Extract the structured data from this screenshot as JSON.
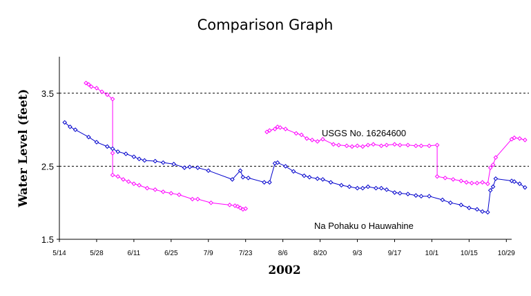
{
  "chart_data": {
    "type": "line",
    "title": "Comparison Graph",
    "xlabel": "2002",
    "ylabel": "Water Level (feet)",
    "ylim": [
      1.5,
      4.0
    ],
    "yticks": [
      1.5,
      2.5,
      3.5
    ],
    "ytick_labels": [
      "1.5",
      "2.5",
      "3.5"
    ],
    "dashed_gridlines_at": [
      2.5,
      3.5
    ],
    "xlim": [
      "2002-05-14",
      "2002-10-31"
    ],
    "xticks": [
      "2002-05-14",
      "2002-05-28",
      "2002-06-11",
      "2002-06-25",
      "2002-07-09",
      "2002-07-23",
      "2002-08-06",
      "2002-08-20",
      "2002-09-03",
      "2002-09-17",
      "2002-10-01",
      "2002-10-15",
      "2002-10-29"
    ],
    "xtick_labels": [
      "5/14",
      "5/28",
      "6/11",
      "6/25",
      "7/9",
      "7/23",
      "8/6",
      "8/20",
      "9/3",
      "9/17",
      "10/1",
      "10/15",
      "10/29"
    ],
    "series": [
      {
        "name": "USGS No. 16264600",
        "color": "#ff00ff",
        "marker": "diamond-open",
        "segments": [
          [
            [
              "2002-05-24",
              3.64
            ],
            [
              "2002-05-25",
              3.62
            ],
            [
              "2002-05-26",
              3.59
            ],
            [
              "2002-05-28",
              3.57
            ],
            [
              "2002-05-30",
              3.52
            ],
            [
              "2002-06-01",
              3.48
            ],
            [
              "2002-06-03",
              3.42
            ],
            [
              "2002-06-03",
              2.68
            ],
            [
              "2002-06-03",
              2.38
            ],
            [
              "2002-06-05",
              2.36
            ],
            [
              "2002-06-07",
              2.32
            ],
            [
              "2002-06-09",
              2.29
            ],
            [
              "2002-06-11",
              2.26
            ],
            [
              "2002-06-13",
              2.24
            ],
            [
              "2002-06-16",
              2.2
            ],
            [
              "2002-06-19",
              2.18
            ],
            [
              "2002-06-22",
              2.15
            ],
            [
              "2002-06-25",
              2.13
            ],
            [
              "2002-06-28",
              2.11
            ],
            [
              "2002-07-03",
              2.05
            ],
            [
              "2002-07-05",
              2.05
            ],
            [
              "2002-07-10",
              2.0
            ],
            [
              "2002-07-17",
              1.97
            ],
            [
              "2002-07-19",
              1.96
            ],
            [
              "2002-07-20",
              1.95
            ],
            [
              "2002-07-21",
              1.93
            ],
            [
              "2002-07-22",
              1.91
            ],
            [
              "2002-07-23",
              1.92
            ]
          ],
          [
            [
              "2002-07-31",
              2.97
            ],
            [
              "2002-08-01",
              2.99
            ],
            [
              "2002-08-03",
              3.01
            ],
            [
              "2002-08-04",
              3.04
            ],
            [
              "2002-08-05",
              3.03
            ],
            [
              "2002-08-07",
              3.01
            ],
            [
              "2002-08-11",
              2.95
            ],
            [
              "2002-08-13",
              2.93
            ],
            [
              "2002-08-15",
              2.88
            ],
            [
              "2002-08-17",
              2.86
            ],
            [
              "2002-08-19",
              2.84
            ],
            [
              "2002-08-21",
              2.87
            ],
            [
              "2002-08-25",
              2.8
            ],
            [
              "2002-08-27",
              2.79
            ],
            [
              "2002-08-30",
              2.78
            ],
            [
              "2002-09-01",
              2.77
            ],
            [
              "2002-09-03",
              2.78
            ],
            [
              "2002-09-05",
              2.77
            ],
            [
              "2002-09-07",
              2.79
            ],
            [
              "2002-09-09",
              2.8
            ],
            [
              "2002-09-12",
              2.78
            ],
            [
              "2002-09-14",
              2.79
            ],
            [
              "2002-09-17",
              2.8
            ],
            [
              "2002-09-19",
              2.79
            ],
            [
              "2002-09-22",
              2.79
            ],
            [
              "2002-09-25",
              2.78
            ],
            [
              "2002-09-27",
              2.78
            ],
            [
              "2002-09-30",
              2.78
            ],
            [
              "2002-10-03",
              2.79
            ],
            [
              "2002-10-03",
              2.36
            ],
            [
              "2002-10-06",
              2.34
            ],
            [
              "2002-10-09",
              2.32
            ],
            [
              "2002-10-12",
              2.3
            ],
            [
              "2002-10-14",
              2.28
            ],
            [
              "2002-10-16",
              2.27
            ],
            [
              "2002-10-18",
              2.27
            ],
            [
              "2002-10-20",
              2.28
            ],
            [
              "2002-10-22",
              2.26
            ],
            [
              "2002-10-23",
              2.48
            ],
            [
              "2002-10-24",
              2.52
            ],
            [
              "2002-10-25",
              2.62
            ],
            [
              "2002-10-31",
              2.87
            ],
            [
              "2002-11-01",
              2.89
            ],
            [
              "2002-11-03",
              2.88
            ],
            [
              "2002-11-05",
              2.86
            ]
          ]
        ]
      },
      {
        "name": "Na Pohaku o Hauwahine",
        "color": "#0000cc",
        "marker": "diamond-open",
        "segments": [
          [
            [
              "2002-05-16",
              3.1
            ],
            [
              "2002-05-18",
              3.04
            ],
            [
              "2002-05-20",
              3.0
            ],
            [
              "2002-05-25",
              2.9
            ],
            [
              "2002-05-28",
              2.83
            ],
            [
              "2002-06-01",
              2.77
            ],
            [
              "2002-06-03",
              2.74
            ],
            [
              "2002-06-05",
              2.7
            ],
            [
              "2002-06-08",
              2.67
            ],
            [
              "2002-06-11",
              2.63
            ],
            [
              "2002-06-13",
              2.6
            ],
            [
              "2002-06-15",
              2.58
            ],
            [
              "2002-06-19",
              2.57
            ],
            [
              "2002-06-22",
              2.55
            ],
            [
              "2002-06-26",
              2.53
            ],
            [
              "2002-06-30",
              2.48
            ],
            [
              "2002-07-02",
              2.49
            ],
            [
              "2002-07-05",
              2.48
            ],
            [
              "2002-07-09",
              2.44
            ],
            [
              "2002-07-18",
              2.32
            ],
            [
              "2002-07-21",
              2.44
            ],
            [
              "2002-07-22",
              2.35
            ],
            [
              "2002-07-24",
              2.34
            ],
            [
              "2002-07-30",
              2.28
            ],
            [
              "2002-08-01",
              2.28
            ],
            [
              "2002-08-03",
              2.54
            ],
            [
              "2002-08-04",
              2.55
            ],
            [
              "2002-08-07",
              2.5
            ],
            [
              "2002-08-10",
              2.43
            ],
            [
              "2002-08-14",
              2.37
            ],
            [
              "2002-08-16",
              2.35
            ],
            [
              "2002-08-19",
              2.33
            ],
            [
              "2002-08-21",
              2.32
            ],
            [
              "2002-08-24",
              2.28
            ],
            [
              "2002-08-28",
              2.24
            ],
            [
              "2002-08-31",
              2.22
            ],
            [
              "2002-09-03",
              2.2
            ],
            [
              "2002-09-05",
              2.2
            ],
            [
              "2002-09-07",
              2.22
            ],
            [
              "2002-09-10",
              2.2
            ],
            [
              "2002-09-12",
              2.2
            ],
            [
              "2002-09-14",
              2.18
            ],
            [
              "2002-09-17",
              2.14
            ],
            [
              "2002-09-19",
              2.13
            ],
            [
              "2002-09-22",
              2.12
            ],
            [
              "2002-09-25",
              2.1
            ],
            [
              "2002-09-27",
              2.09
            ],
            [
              "2002-09-30",
              2.09
            ],
            [
              "2002-10-05",
              2.04
            ],
            [
              "2002-10-08",
              2.0
            ],
            [
              "2002-10-12",
              1.97
            ],
            [
              "2002-10-15",
              1.93
            ],
            [
              "2002-10-18",
              1.91
            ],
            [
              "2002-10-20",
              1.88
            ],
            [
              "2002-10-22",
              1.87
            ],
            [
              "2002-10-23",
              2.17
            ],
            [
              "2002-10-24",
              2.22
            ],
            [
              "2002-10-25",
              2.33
            ],
            [
              "2002-10-31",
              2.3
            ],
            [
              "2002-11-01",
              2.29
            ],
            [
              "2002-11-03",
              2.26
            ],
            [
              "2002-11-05",
              2.21
            ]
          ]
        ]
      }
    ],
    "annotations": [
      {
        "text": "USGS No. 16264600",
        "near": "upper series, middle"
      },
      {
        "text": "Na Pohaku o Hauwahine",
        "near": "lower series, lower right"
      }
    ],
    "legend": "none",
    "grid": "dashed horizontal lines at 2.5 and 3.5"
  }
}
